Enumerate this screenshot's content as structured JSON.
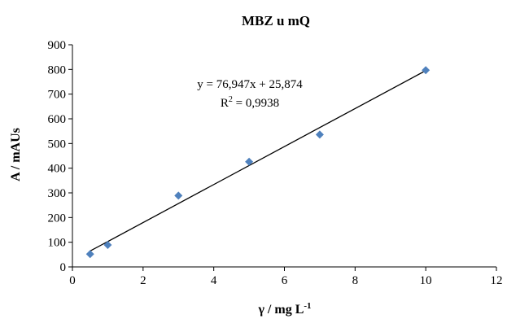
{
  "chart_data": {
    "type": "scatter",
    "title": "MBZ u mQ",
    "xlabel": "γ / mg L",
    "xlabel_sup": "-1",
    "ylabel": "A / mAUs",
    "xlim": [
      0,
      12
    ],
    "ylim": [
      0,
      900
    ],
    "x_ticks": [
      "0",
      "2",
      "4",
      "6",
      "8",
      "10",
      "12"
    ],
    "y_ticks": [
      "0",
      "100",
      "200",
      "300",
      "400",
      "500",
      "600",
      "700",
      "800",
      "900"
    ],
    "grid": false,
    "legend": "none",
    "marker_color": "#4f81bd",
    "series": [
      {
        "x": [
          0.5,
          1,
          3,
          5,
          7,
          10
        ],
        "y": [
          52,
          89,
          289,
          426,
          536,
          797
        ]
      }
    ],
    "trendline": {
      "slope": 76.947,
      "intercept": 25.874,
      "x_range": [
        0.5,
        10
      ],
      "equation": "y = 76,947x + 25,874",
      "r2_label": "R",
      "r2_sup": "2",
      "r2_value": " = 0,9938"
    }
  }
}
